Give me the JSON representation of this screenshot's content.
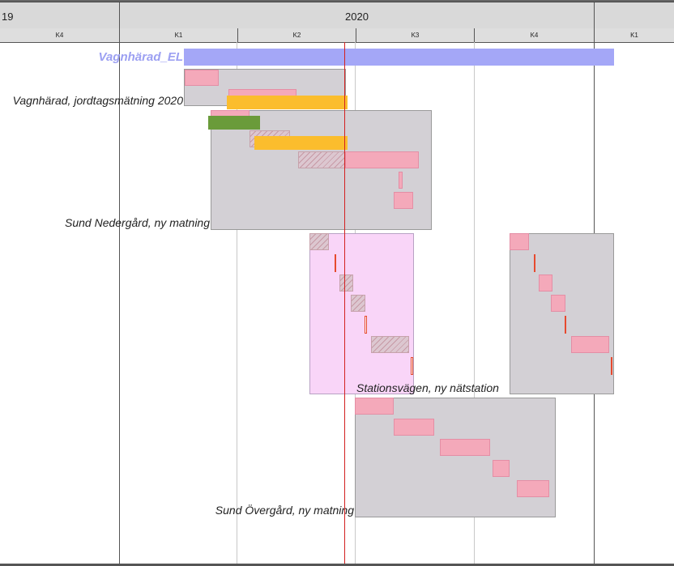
{
  "timescale": {
    "years": [
      {
        "id": "y2019",
        "label": "19"
      },
      {
        "id": "y2020",
        "label": "2020"
      },
      {
        "id": "y2021",
        "label": ""
      }
    ],
    "quarters": [
      {
        "id": "q-2019-4",
        "label": "K4"
      },
      {
        "id": "q-2020-1",
        "label": "K1"
      },
      {
        "id": "q-2020-2",
        "label": "K2"
      },
      {
        "id": "q-2020-3",
        "label": "K3"
      },
      {
        "id": "q-2020-4",
        "label": "K4"
      },
      {
        "id": "q-2021-1",
        "label": "K1"
      }
    ]
  },
  "rows": {
    "project": {
      "label": "Vagnhärad_EL"
    },
    "group_jordtag": {
      "label": "Vagnhärad, jordtagsmätning 2020"
    },
    "group_nedergard": {
      "label": "Sund Nedergård, ny matning"
    },
    "group_stationsvagen": {
      "label": "Stationsvägen, ny nätstation"
    },
    "group_overgard": {
      "label": "Sund Övergård, ny matning"
    }
  },
  "colors": {
    "project_bar": "#a4a7f7",
    "task": "#f4a9ba",
    "group": "#d3d0d5",
    "group_highlight": "#f9d5f8",
    "resource_orange": "#fbbd2d",
    "resource_green": "#6a9b3a",
    "milestone": "#e64a2f",
    "today_line": "#d32020"
  }
}
